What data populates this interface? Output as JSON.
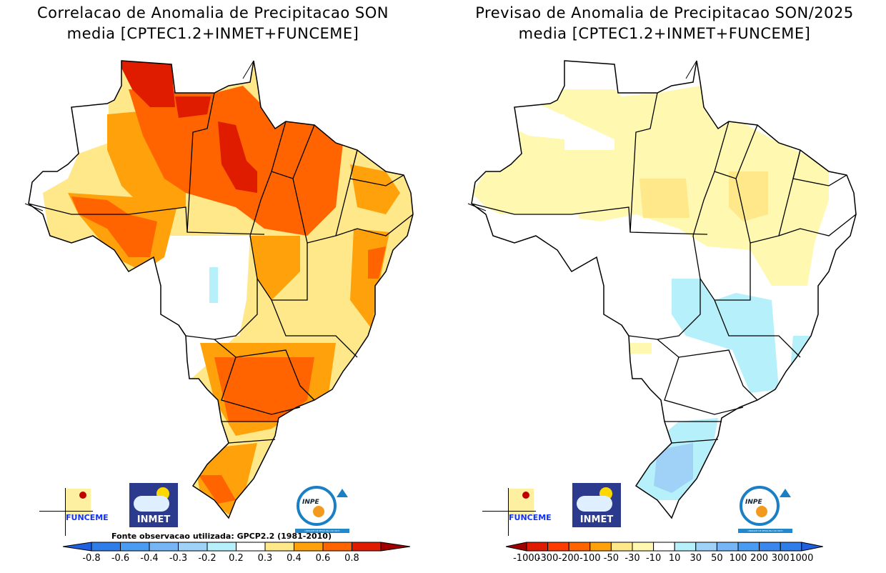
{
  "left": {
    "title_line1": "Correlacao de Anomalia de Precipitacao SON",
    "title_line2": "media [CPTEC1.2+INMET+FUNCEME]",
    "source": "Fonte observacao utilizada: GPCP2.2 (1981-2010)",
    "legend": {
      "ticks": [
        "-0.8",
        "-0.6",
        "-0.4",
        "-0.3",
        "-0.2",
        "0.2",
        "0.3",
        "0.4",
        "0.6",
        "0.8"
      ],
      "low_arrow_color": "#1f5fe0",
      "colors": [
        "#2f7de8",
        "#4a9bf2",
        "#76b6f6",
        "#a0d2f8",
        "#b6f0fa",
        "#ffffff",
        "#fee88a",
        "#ffa10a",
        "#ff6400",
        "#e01c00"
      ],
      "high_arrow_color": "#a00000"
    }
  },
  "right": {
    "title_line1": "Previsao de Anomalia de Precipitacao SON/2025",
    "title_line2": "media [CPTEC1.2+INMET+FUNCEME]",
    "legend": {
      "ticks": [
        "-1000",
        "-300",
        "-200",
        "-100",
        "-50",
        "-30",
        "-10",
        "10",
        "30",
        "50",
        "100",
        "200",
        "300",
        "1000"
      ],
      "low_arrow_color": "#a00000",
      "colors": [
        "#e01c00",
        "#ff3c00",
        "#ff6400",
        "#ffa10a",
        "#fee88a",
        "#fff8b0",
        "#ffffff",
        "#b6f0fa",
        "#a0d2f8",
        "#76b6f6",
        "#4a9bf2",
        "#3a88ee",
        "#2f7de8"
      ],
      "high_arrow_color": "#1f5fe0"
    }
  },
  "logos": {
    "funceme": "FUNCEME",
    "inmet": "INMET",
    "inpe": "INPE",
    "inpe_sub": "UNIDADE DE PESQUISA DO MCTI"
  }
}
